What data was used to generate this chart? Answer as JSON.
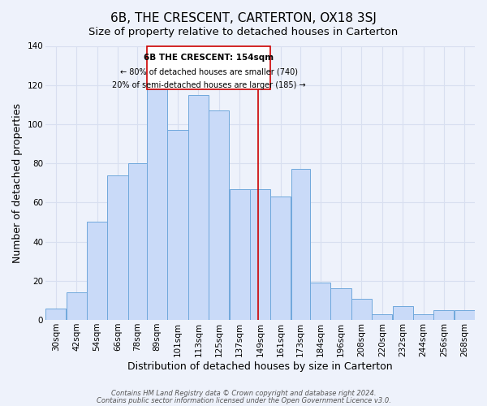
{
  "title": "6B, THE CRESCENT, CARTERTON, OX18 3SJ",
  "subtitle": "Size of property relative to detached houses in Carterton",
  "xlabel": "Distribution of detached houses by size in Carterton",
  "ylabel": "Number of detached properties",
  "bin_labels": [
    "30sqm",
    "42sqm",
    "54sqm",
    "66sqm",
    "78sqm",
    "89sqm",
    "101sqm",
    "113sqm",
    "125sqm",
    "137sqm",
    "149sqm",
    "161sqm",
    "173sqm",
    "184sqm",
    "196sqm",
    "208sqm",
    "220sqm",
    "232sqm",
    "244sqm",
    "256sqm",
    "268sqm"
  ],
  "bin_edges": [
    30,
    42,
    54,
    66,
    78,
    89,
    101,
    113,
    125,
    137,
    149,
    161,
    173,
    184,
    196,
    208,
    220,
    232,
    244,
    256,
    268,
    280
  ],
  "bar_heights": [
    6,
    14,
    50,
    74,
    80,
    118,
    97,
    115,
    107,
    67,
    67,
    63,
    77,
    19,
    16,
    11,
    3,
    7,
    3,
    5,
    5
  ],
  "bar_color": "#c9daf8",
  "bar_edge_color": "#6fa8dc",
  "property_value": 154,
  "marker_line_color": "#cc0000",
  "annotation_box_color": "#cc0000",
  "annotation_text_line1": "6B THE CRESCENT: 154sqm",
  "annotation_text_line2": "← 80% of detached houses are smaller (740)",
  "annotation_text_line3": "20% of semi-detached houses are larger (185) →",
  "ylim": [
    0,
    140
  ],
  "yticks": [
    0,
    20,
    40,
    60,
    80,
    100,
    120,
    140
  ],
  "footer_line1": "Contains HM Land Registry data © Crown copyright and database right 2024.",
  "footer_line2": "Contains public sector information licensed under the Open Government Licence v3.0.",
  "bg_color": "#eef2fb",
  "grid_color": "#d8dff0",
  "title_fontsize": 11,
  "subtitle_fontsize": 9.5,
  "axis_label_fontsize": 9,
  "tick_fontsize": 7.5,
  "ann_fontsize_bold": 7.5,
  "ann_fontsize": 7.0,
  "footer_fontsize": 6.0
}
